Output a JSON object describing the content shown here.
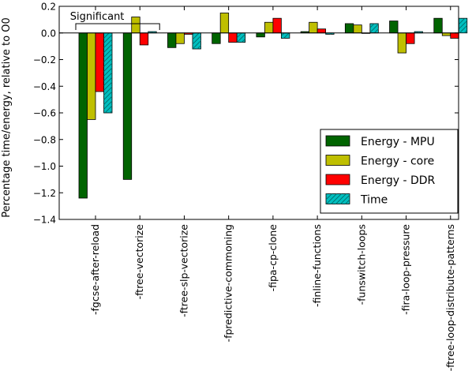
{
  "chart_data": {
    "type": "bar",
    "ylabel": "Percentage time/energy, relative to O0",
    "ylim": [
      -1.4,
      0.2
    ],
    "yticks": [
      0.2,
      0.0,
      -0.2,
      -0.4,
      -0.6,
      -0.8,
      -1.0,
      -1.2,
      -1.4
    ],
    "ytick_labels": [
      "0.2",
      "0.0",
      "−0.2",
      "−0.4",
      "−0.6",
      "−0.8",
      "−1.0",
      "−1.2",
      "−1.4"
    ],
    "grid": false,
    "legend_position": "lower-right",
    "categories": [
      "-fgcse-after-reload",
      "-ftree-vectorize",
      "-ftree-slp-vectorize",
      "-fpredictive-commoning",
      "-fipa-cp-clone",
      "-finline-functions",
      "-funswitch-loops",
      "-fira-loop-pressure",
      "-ftree-loop-distribute-patterns"
    ],
    "series": [
      {
        "name": "Energy - MPU",
        "color": "#006400",
        "hatch": false,
        "values": [
          -1.24,
          -1.1,
          -0.11,
          -0.08,
          -0.03,
          0.01,
          0.07,
          0.09,
          0.11
        ]
      },
      {
        "name": "Energy - core",
        "color": "#bfbf00",
        "hatch": false,
        "values": [
          -0.65,
          0.12,
          -0.08,
          0.15,
          0.08,
          0.08,
          0.06,
          -0.15,
          -0.02
        ]
      },
      {
        "name": "Energy - DDR",
        "color": "#ff0000",
        "hatch": false,
        "values": [
          -0.44,
          -0.09,
          -0.01,
          -0.07,
          0.11,
          0.03,
          0.0,
          -0.08,
          -0.04
        ]
      },
      {
        "name": "Time",
        "color": "#00bfbf",
        "hatch": true,
        "values": [
          -0.6,
          0.01,
          -0.12,
          -0.07,
          -0.04,
          -0.01,
          0.07,
          0.01,
          0.11
        ]
      }
    ],
    "annotation": {
      "text": "Significant",
      "spans_categories": [
        0,
        1
      ]
    }
  }
}
